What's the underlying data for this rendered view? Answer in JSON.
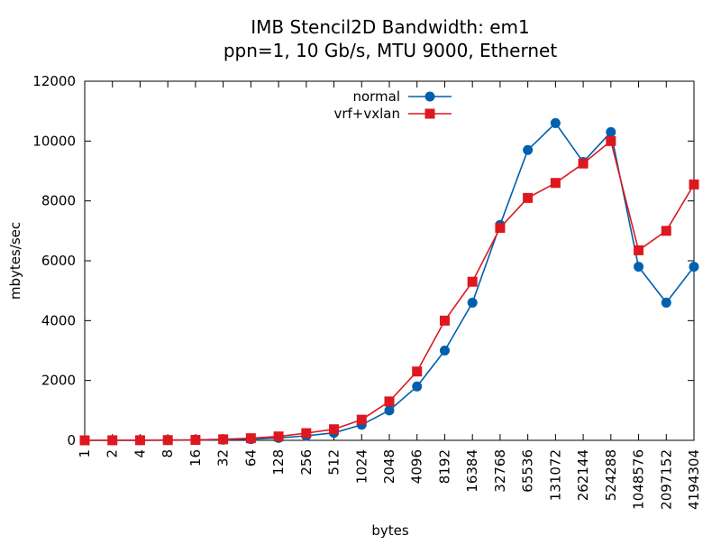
{
  "chart_data": {
    "type": "line",
    "title": "IMB Stencil2D Bandwidth: em1",
    "subtitle": "ppn=1, 10 Gb/s, MTU 9000, Ethernet",
    "xlabel": "bytes",
    "ylabel": "mbytes/sec",
    "ylim": [
      0,
      12000
    ],
    "yticks": [
      "0",
      "2000",
      "4000",
      "6000",
      "8000",
      "10000",
      "12000"
    ],
    "categories": [
      "1",
      "2",
      "4",
      "8",
      "16",
      "32",
      "64",
      "128",
      "256",
      "512",
      "1024",
      "2048",
      "4096",
      "8192",
      "16384",
      "32768",
      "65536",
      "131072",
      "262144",
      "524288",
      "1048576",
      "2097152",
      "4194304"
    ],
    "legend_position": "top",
    "grid": false,
    "series": [
      {
        "name": "normal",
        "color": "#0060ad",
        "marker": "circle",
        "values": [
          0,
          1,
          3,
          5,
          10,
          20,
          40,
          80,
          150,
          250,
          520,
          1000,
          1800,
          3000,
          4600,
          7200,
          9700,
          10600,
          9300,
          10300,
          5800,
          4600,
          5800
        ]
      },
      {
        "name": "vrf+vxlan",
        "color": "#dd181f",
        "marker": "square",
        "values": [
          0,
          2,
          4,
          8,
          15,
          35,
          70,
          130,
          240,
          370,
          690,
          1300,
          2300,
          4000,
          5300,
          7100,
          8100,
          8600,
          9250,
          10000,
          6350,
          7000,
          8550
        ]
      }
    ]
  }
}
